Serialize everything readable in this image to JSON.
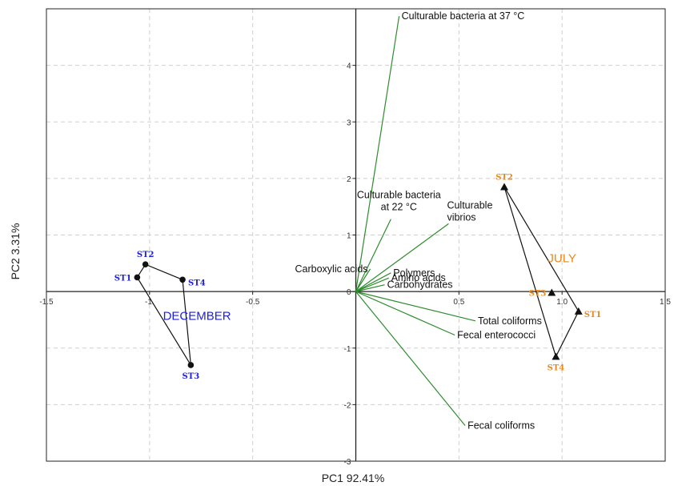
{
  "chart_data": {
    "type": "scatter",
    "subtype": "pca-biplot",
    "title": "",
    "xlabel": "PC1 92.41%",
    "ylabel": "PC2 3.31%",
    "xlim": [
      -1.5,
      1.5
    ],
    "ylim": [
      -3,
      5
    ],
    "x_ticks": [
      {
        "value": -1.5,
        "label": "-1.5"
      },
      {
        "value": -1.0,
        "label": "-1."
      },
      {
        "value": -0.5,
        "label": "-0.5"
      },
      {
        "value": 0.5,
        "label": "0.5"
      },
      {
        "value": 1.0,
        "label": "1.0"
      },
      {
        "value": 1.5,
        "label": "1.5"
      }
    ],
    "y_ticks": [
      {
        "value": -3,
        "label": "-3"
      },
      {
        "value": -2,
        "label": "-2"
      },
      {
        "value": -1,
        "label": "-1"
      },
      {
        "value": 0,
        "label": "0"
      },
      {
        "value": 1,
        "label": "1"
      },
      {
        "value": 2,
        "label": "2"
      },
      {
        "value": 3,
        "label": "3"
      },
      {
        "value": 4,
        "label": "4"
      }
    ],
    "grid": true,
    "vector_color": "#2e8b2e",
    "vectors": [
      {
        "label_lines": [
          "Culturable bacteria at 37 °C"
        ],
        "x": 0.21,
        "y": 4.87,
        "label_pos": "right"
      },
      {
        "label_lines": [
          "Culturable bacteria",
          "at 22 °C"
        ],
        "x": 0.17,
        "y": 1.28,
        "label_pos": "above"
      },
      {
        "label_lines": [
          "Culturable",
          "vibrios"
        ],
        "x": 0.45,
        "y": 1.2,
        "label_pos": "right-above"
      },
      {
        "label_lines": [
          "Carboxylic acids"
        ],
        "x": 0.07,
        "y": 0.4,
        "label_pos": "left"
      },
      {
        "label_lines": [
          "Polymers"
        ],
        "x": 0.17,
        "y": 0.33,
        "label_pos": "right"
      },
      {
        "label_lines": [
          "Amino acids"
        ],
        "x": 0.16,
        "y": 0.24,
        "label_pos": "right"
      },
      {
        "label_lines": [
          "Carbohydrates"
        ],
        "x": 0.14,
        "y": 0.12,
        "label_pos": "right"
      },
      {
        "label_lines": [
          "Total coliforms"
        ],
        "x": 0.58,
        "y": -0.52,
        "label_pos": "right"
      },
      {
        "label_lines": [
          "Fecal enterococci"
        ],
        "x": 0.48,
        "y": -0.77,
        "label_pos": "right"
      },
      {
        "label_lines": [
          "Fecal coliforms"
        ],
        "x": 0.53,
        "y": -2.37,
        "label_pos": "right"
      }
    ],
    "groups": [
      {
        "name": "DECEMBER",
        "color": "#1f1fd6",
        "marker": "circle",
        "label_x": -0.77,
        "label_y": -0.5,
        "polygon_order": [
          "ST1",
          "ST2",
          "ST4",
          "ST3"
        ],
        "points": [
          {
            "label": "ST1",
            "x": -1.06,
            "y": 0.25,
            "label_pos": "left"
          },
          {
            "label": "ST2",
            "x": -1.02,
            "y": 0.48,
            "label_pos": "above"
          },
          {
            "label": "ST4",
            "x": -0.84,
            "y": 0.21,
            "label_pos": "right"
          },
          {
            "label": "ST3",
            "x": -0.8,
            "y": -1.3,
            "label_pos": "below"
          }
        ]
      },
      {
        "name": "JULY",
        "color": "#e8881e",
        "marker": "triangle",
        "label_x": 1.0,
        "label_y": 0.52,
        "polygon_order": [
          "ST2",
          "ST1",
          "ST4"
        ],
        "points": [
          {
            "label": "ST2",
            "x": 0.72,
            "y": 1.85,
            "label_pos": "above"
          },
          {
            "label": "ST3",
            "x": 0.95,
            "y": -0.02,
            "label_pos": "left"
          },
          {
            "label": "ST1",
            "x": 1.08,
            "y": -0.35,
            "label_pos": "right"
          },
          {
            "label": "ST4",
            "x": 0.97,
            "y": -1.15,
            "label_pos": "below"
          }
        ]
      }
    ]
  }
}
